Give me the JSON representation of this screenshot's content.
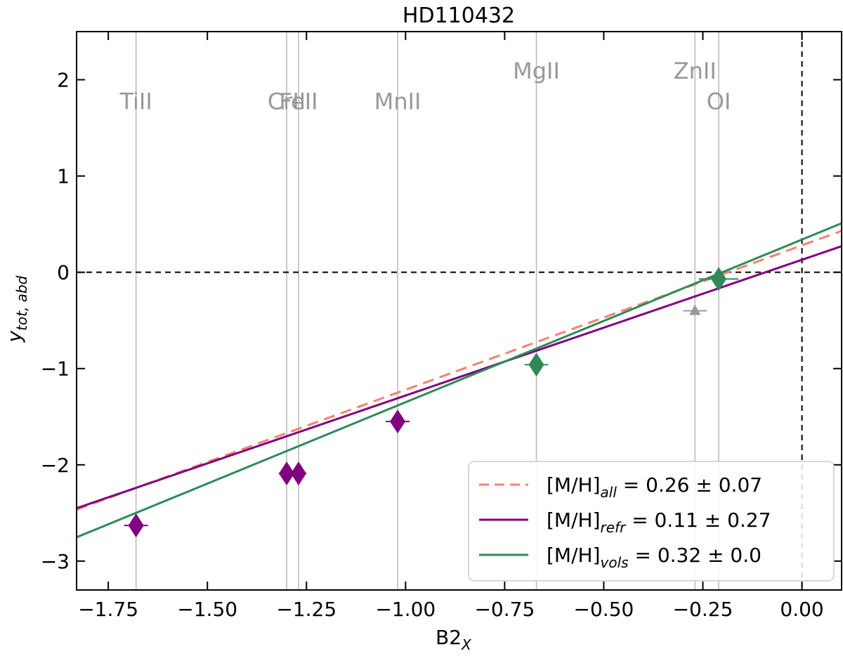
{
  "chart_data": {
    "type": "scatter",
    "title": "HD110432",
    "xlabel_main": "B2",
    "xlabel_sub": "X",
    "ylabel_main": "y",
    "ylabel_sub": "tot, abd",
    "xlim": [
      -1.83,
      0.1
    ],
    "ylim": [
      -3.3,
      2.5
    ],
    "xticks": [
      -1.75,
      -1.5,
      -1.25,
      -1.0,
      -0.75,
      -0.5,
      -0.25,
      0.0
    ],
    "xtick_labels": [
      "−1.75",
      "−1.50",
      "−1.25",
      "−1.00",
      "−0.75",
      "−0.50",
      "−0.25",
      "0.00"
    ],
    "yticks": [
      -3,
      -2,
      -1,
      0,
      1,
      2
    ],
    "ytick_labels": [
      "−3",
      "−2",
      "−1",
      "0",
      "1",
      "2"
    ],
    "element_lines": [
      {
        "label": "TiII",
        "x": -1.68,
        "label_y": 1.78
      },
      {
        "label": "CrII",
        "x": -1.3,
        "label_y": 1.78
      },
      {
        "label": "FeII",
        "x": -1.27,
        "label_y": 1.78
      },
      {
        "label": "MnII",
        "x": -1.02,
        "label_y": 1.78
      },
      {
        "label": "MgII",
        "x": -0.67,
        "label_y": 2.1
      },
      {
        "label": "ZnII",
        "x": -0.27,
        "label_y": 2.1
      },
      {
        "label": "OI",
        "x": -0.21,
        "label_y": 1.78
      }
    ],
    "points": [
      {
        "element": "TiII",
        "x": -1.68,
        "y": -2.63,
        "xerr": 0.03,
        "color": "#800080",
        "marker": "diamond"
      },
      {
        "element": "CrII",
        "x": -1.3,
        "y": -2.09,
        "xerr": 0.02,
        "color": "#800080",
        "marker": "diamond"
      },
      {
        "element": "FeII",
        "x": -1.27,
        "y": -2.09,
        "xerr": 0.02,
        "color": "#800080",
        "marker": "diamond"
      },
      {
        "element": "MnII",
        "x": -1.02,
        "y": -1.55,
        "xerr": 0.03,
        "color": "#800080",
        "marker": "diamond"
      },
      {
        "element": "MgII",
        "x": -0.67,
        "y": -0.96,
        "xerr": 0.03,
        "color": "#2e8b57",
        "marker": "diamond"
      },
      {
        "element": "ZnII",
        "x": -0.27,
        "y": -0.4,
        "xerr": 0.03,
        "color": "#999999",
        "marker": "triangle-up"
      },
      {
        "element": "OI",
        "x": -0.21,
        "y": -0.07,
        "xerr": 0.05,
        "color": "#2e8b57",
        "marker": "diamond"
      }
    ],
    "fits": [
      {
        "name": "[M/H]",
        "sub": "all",
        "value_text": " = 0.26 ± 0.07",
        "slope": 1.5,
        "intercept": 0.28,
        "color": "#fa8072",
        "dash": "16,9"
      },
      {
        "name": "[M/H]",
        "sub": "refr",
        "value_text": " = 0.11 ± 0.27",
        "slope": 1.41,
        "intercept": 0.13,
        "color": "#800080",
        "dash": ""
      },
      {
        "name": "[M/H]",
        "sub": "vols",
        "value_text": " = 0.32 ± 0.0",
        "slope": 1.69,
        "intercept": 0.34,
        "color": "#2e8b57",
        "dash": ""
      }
    ],
    "reference_lines": {
      "y": 0,
      "x": 0
    },
    "legend_position": "lower-right",
    "grid": false
  }
}
